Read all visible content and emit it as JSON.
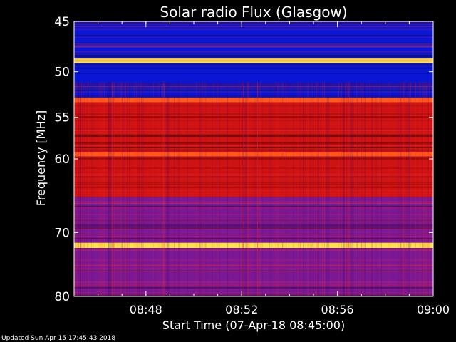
{
  "chart_data": {
    "type": "heatmap",
    "title": "Solar radio Flux (Glasgow)",
    "xlabel": "Start Time (07-Apr-18 08:45:00)",
    "ylabel": "Frequency [MHz]",
    "x_range_minutes": [
      "08:45",
      "09:00"
    ],
    "xticks": [
      "08:48",
      "08:52",
      "08:56",
      "09:00"
    ],
    "xtick_minutes": [
      3,
      7,
      11,
      15
    ],
    "y_scale": "log",
    "ylim": [
      45,
      80
    ],
    "yticks": [
      45,
      50,
      55,
      60,
      70,
      80
    ],
    "colormap": "blue-red-yellow",
    "bands": [
      {
        "from": 45.0,
        "to": 48.6,
        "level": "low"
      },
      {
        "from": 48.6,
        "to": 49.1,
        "level": "very-high"
      },
      {
        "from": 49.1,
        "to": 52.8,
        "level": "low"
      },
      {
        "from": 52.8,
        "to": 53.3,
        "level": "high"
      },
      {
        "from": 53.3,
        "to": 59.2,
        "level": "medium"
      },
      {
        "from": 59.2,
        "to": 59.7,
        "level": "high"
      },
      {
        "from": 59.7,
        "to": 65.0,
        "level": "medium"
      },
      {
        "from": 65.0,
        "to": 71.5,
        "level": "medium-low"
      },
      {
        "from": 71.5,
        "to": 72.3,
        "level": "very-high"
      },
      {
        "from": 72.3,
        "to": 80.0,
        "level": "medium-low"
      }
    ],
    "colors": {
      "low": "#0a16d6",
      "medium-low": "#7a1896",
      "medium": "#cf1212",
      "high": "#ff5a1a",
      "very-high": "#ffdf4a"
    }
  },
  "footer": "Updated Sun Apr 15 17:45:43 2018"
}
